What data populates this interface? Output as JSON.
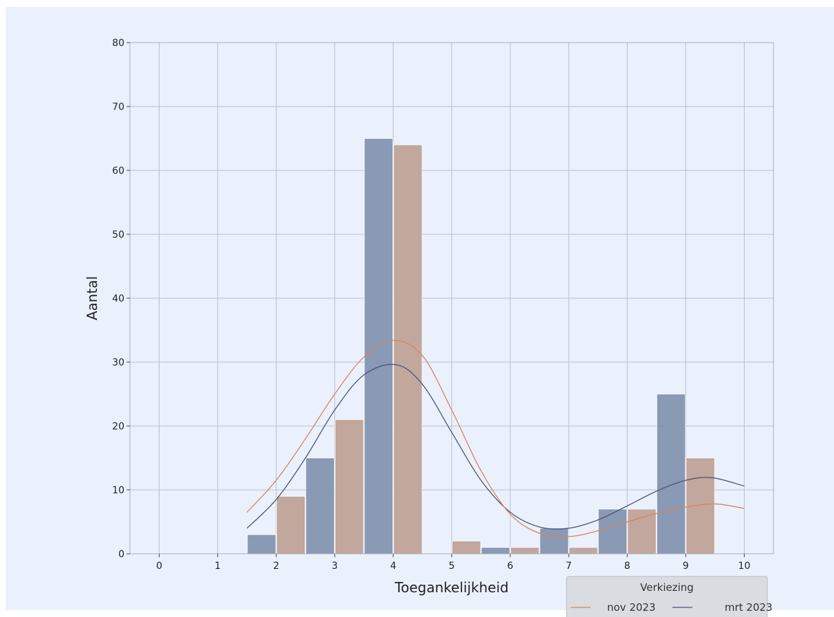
{
  "chart_data": {
    "type": "bar",
    "title": "",
    "xlabel": "Toegankelijkheid",
    "ylabel": "Aantal",
    "xlim": [
      -0.5,
      10.5
    ],
    "ylim": [
      0,
      80
    ],
    "x_ticks": [
      0,
      1,
      2,
      3,
      4,
      5,
      6,
      7,
      8,
      9,
      10
    ],
    "y_ticks": [
      0,
      10,
      20,
      30,
      40,
      50,
      60,
      70,
      80
    ],
    "grid": true,
    "bin_width": 0.5,
    "series": [
      {
        "name": "mrt 2023",
        "color": "#8593b0",
        "curve_color": "#4a5575",
        "bins": [
          {
            "x0": 1.5,
            "value": 3
          },
          {
            "x0": 2.5,
            "value": 15
          },
          {
            "x0": 3.5,
            "value": 65
          },
          {
            "x0": 5.5,
            "value": 1
          },
          {
            "x0": 6.5,
            "value": 4
          },
          {
            "x0": 7.5,
            "value": 7
          },
          {
            "x0": 8.5,
            "value": 25
          }
        ],
        "kde": [
          [
            1.5,
            4.0
          ],
          [
            2.0,
            8.5
          ],
          [
            2.5,
            15.0
          ],
          [
            3.0,
            22.5
          ],
          [
            3.5,
            28.0
          ],
          [
            4.05,
            29.6
          ],
          [
            4.5,
            26.5
          ],
          [
            5.0,
            19.0
          ],
          [
            5.5,
            11.5
          ],
          [
            6.0,
            6.5
          ],
          [
            6.5,
            4.2
          ],
          [
            7.0,
            4.0
          ],
          [
            7.5,
            5.3
          ],
          [
            8.0,
            7.5
          ],
          [
            8.5,
            9.8
          ],
          [
            9.0,
            11.5
          ],
          [
            9.45,
            11.9
          ],
          [
            10.0,
            10.6
          ]
        ]
      },
      {
        "name": "nov 2023",
        "color": "#c0a298",
        "curve_color": "#d9845a",
        "bins": [
          {
            "x0": 2.0,
            "value": 9
          },
          {
            "x0": 3.0,
            "value": 21
          },
          {
            "x0": 4.0,
            "value": 64
          },
          {
            "x0": 5.0,
            "value": 2
          },
          {
            "x0": 6.0,
            "value": 1
          },
          {
            "x0": 7.0,
            "value": 1
          },
          {
            "x0": 8.0,
            "value": 7
          },
          {
            "x0": 9.0,
            "value": 15
          }
        ],
        "kde": [
          [
            1.5,
            6.5
          ],
          [
            2.0,
            11.5
          ],
          [
            2.5,
            18.0
          ],
          [
            3.0,
            25.0
          ],
          [
            3.5,
            30.8
          ],
          [
            4.0,
            33.4
          ],
          [
            4.5,
            31.0
          ],
          [
            5.0,
            22.5
          ],
          [
            5.5,
            13.0
          ],
          [
            6.0,
            6.2
          ],
          [
            6.5,
            3.2
          ],
          [
            7.0,
            2.7
          ],
          [
            7.5,
            3.6
          ],
          [
            8.0,
            5.0
          ],
          [
            8.5,
            6.3
          ],
          [
            9.0,
            7.3
          ],
          [
            9.5,
            7.8
          ],
          [
            10.0,
            7.1
          ]
        ]
      }
    ],
    "legend": {
      "title": "Verkiezing",
      "position": "bottom-right",
      "entries": [
        {
          "label": "nov 2023",
          "color": "#d9845a"
        },
        {
          "label": "mrt 2023",
          "color": "#4a5575"
        }
      ]
    }
  }
}
